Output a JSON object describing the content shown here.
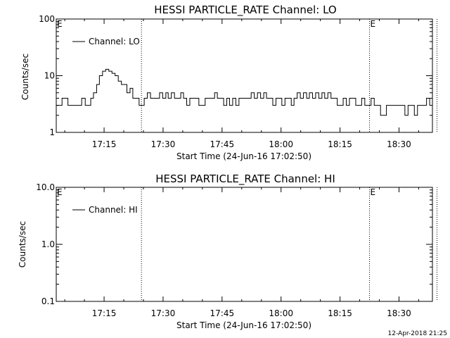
{
  "chart_data": [
    {
      "type": "line",
      "title": "HESSI PARTICLE_RATE Channel: LO",
      "xlabel": "Start Time (24-Jun-16 17:02:50)",
      "ylabel": "Counts/sec",
      "yscale": "log",
      "ylim": [
        1,
        100
      ],
      "yticks": [
        1,
        10,
        100
      ],
      "ytick_labels": [
        "1",
        "10",
        "100"
      ],
      "xlim_minutes": [
        2.83,
        98.5
      ],
      "xticks": [
        "17:15",
        "17:30",
        "17:45",
        "18:00",
        "18:15",
        "18:30"
      ],
      "event_markers": [
        {
          "time": "17:24:30",
          "label": ""
        },
        {
          "time": "18:22:30",
          "label": "E"
        },
        {
          "time": "18:39:40",
          "label": ""
        }
      ],
      "axis_marker": "E",
      "legend": {
        "label": "Channel: LO",
        "position": "top-left"
      },
      "series": [
        {
          "name": "Channel: LO",
          "points": [
            [
              2.8,
              3
            ],
            [
              3.7,
              3
            ],
            [
              4.3,
              4
            ],
            [
              5.1,
              4
            ],
            [
              5.8,
              3
            ],
            [
              7.8,
              3
            ],
            [
              8.6,
              3
            ],
            [
              9.3,
              4
            ],
            [
              10.2,
              3
            ],
            [
              10.8,
              3
            ],
            [
              11.6,
              4
            ],
            [
              12.3,
              5
            ],
            [
              13.1,
              7
            ],
            [
              13.8,
              10
            ],
            [
              14.6,
              12
            ],
            [
              15.4,
              13
            ],
            [
              16.2,
              12
            ],
            [
              17.0,
              11
            ],
            [
              17.8,
              10
            ],
            [
              18.6,
              8
            ],
            [
              19.4,
              7
            ],
            [
              20.2,
              7
            ],
            [
              20.8,
              5
            ],
            [
              21.6,
              6
            ],
            [
              22.3,
              4
            ],
            [
              23.1,
              4
            ],
            [
              23.9,
              3
            ],
            [
              24.6,
              3
            ],
            [
              25.2,
              4
            ],
            [
              26.0,
              5
            ],
            [
              26.8,
              4
            ],
            [
              28.3,
              4
            ],
            [
              29.1,
              5
            ],
            [
              29.9,
              4
            ],
            [
              30.7,
              5
            ],
            [
              31.3,
              4
            ],
            [
              32.1,
              5
            ],
            [
              32.9,
              4
            ],
            [
              33.7,
              4
            ],
            [
              34.5,
              5
            ],
            [
              35.2,
              4
            ],
            [
              36.0,
              3
            ],
            [
              36.8,
              4
            ],
            [
              37.6,
              4
            ],
            [
              38.4,
              4
            ],
            [
              39.1,
              3
            ],
            [
              39.9,
              3
            ],
            [
              40.7,
              4
            ],
            [
              41.5,
              4
            ],
            [
              42.3,
              4
            ],
            [
              43.1,
              5
            ],
            [
              43.8,
              4
            ],
            [
              44.6,
              4
            ],
            [
              45.4,
              3
            ],
            [
              46.2,
              4
            ],
            [
              46.9,
              3
            ],
            [
              47.7,
              4
            ],
            [
              48.5,
              3
            ],
            [
              49.3,
              4
            ],
            [
              50.1,
              4
            ],
            [
              50.9,
              4
            ],
            [
              51.6,
              4
            ],
            [
              52.4,
              5
            ],
            [
              53.2,
              4
            ],
            [
              54.0,
              5
            ],
            [
              54.8,
              4
            ],
            [
              55.6,
              5
            ],
            [
              56.3,
              4
            ],
            [
              57.1,
              4
            ],
            [
              57.9,
              3
            ],
            [
              58.7,
              4
            ],
            [
              59.4,
              4
            ],
            [
              60.2,
              3
            ],
            [
              61.0,
              4
            ],
            [
              61.8,
              4
            ],
            [
              62.6,
              3
            ],
            [
              63.3,
              4
            ],
            [
              64.1,
              5
            ],
            [
              64.9,
              4
            ],
            [
              65.7,
              5
            ],
            [
              66.5,
              4
            ],
            [
              67.2,
              5
            ],
            [
              68.0,
              4
            ],
            [
              68.8,
              5
            ],
            [
              69.6,
              4
            ],
            [
              70.4,
              5
            ],
            [
              71.1,
              4
            ],
            [
              71.9,
              5
            ],
            [
              72.7,
              4
            ],
            [
              73.5,
              4
            ],
            [
              74.3,
              3
            ],
            [
              75.1,
              3
            ],
            [
              75.8,
              4
            ],
            [
              76.6,
              3
            ],
            [
              77.4,
              4
            ],
            [
              78.2,
              4
            ],
            [
              79.0,
              3
            ],
            [
              79.7,
              3
            ],
            [
              80.5,
              4
            ],
            [
              81.3,
              3
            ],
            [
              82.1,
              3
            ],
            [
              82.9,
              4
            ],
            [
              83.7,
              3
            ],
            [
              84.5,
              3
            ],
            [
              85.3,
              2
            ],
            [
              86.1,
              2
            ],
            [
              86.8,
              3
            ],
            [
              87.6,
              3
            ],
            [
              88.4,
              3
            ],
            [
              89.2,
              3
            ],
            [
              90.0,
              3
            ],
            [
              90.7,
              3
            ],
            [
              91.5,
              2
            ],
            [
              92.3,
              3
            ],
            [
              93.1,
              3
            ],
            [
              93.9,
              2
            ],
            [
              94.7,
              3
            ],
            [
              95.4,
              3
            ],
            [
              96.2,
              3
            ],
            [
              97.0,
              4
            ],
            [
              97.8,
              3
            ]
          ]
        }
      ]
    },
    {
      "type": "line",
      "title": "HESSI PARTICLE_RATE Channel: HI",
      "xlabel": "Start Time (24-Jun-16 17:02:50)",
      "ylabel": "Counts/sec",
      "yscale": "log",
      "ylim": [
        0.1,
        10
      ],
      "yticks": [
        0.1,
        1,
        10
      ],
      "ytick_labels": [
        "0.1",
        "1.0",
        "10.0"
      ],
      "xlim_minutes": [
        2.83,
        98.5
      ],
      "xticks": [
        "17:15",
        "17:30",
        "17:45",
        "18:00",
        "18:15",
        "18:30"
      ],
      "event_markers": [
        {
          "time": "17:24:30",
          "label": ""
        },
        {
          "time": "18:22:30",
          "label": "E"
        },
        {
          "time": "18:39:40",
          "label": ""
        }
      ],
      "axis_marker": "E",
      "legend": {
        "label": "Channel: HI",
        "position": "top-left"
      },
      "series": [
        {
          "name": "Channel: HI",
          "points": []
        }
      ]
    }
  ],
  "timestamp": "12-Apr-2018 21:25"
}
